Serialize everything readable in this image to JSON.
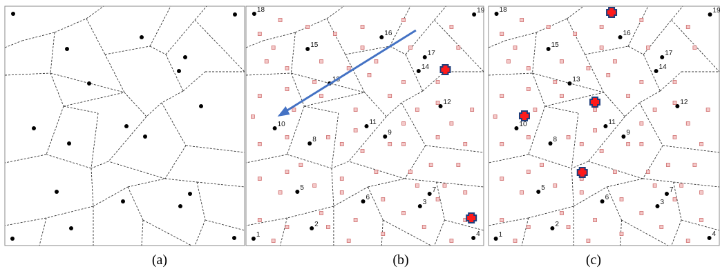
{
  "colors": {
    "site": "#000000",
    "edge": "#333333",
    "frame": "#8a8a8a",
    "sample_fill": "#f3c9c9",
    "sample_stroke": "#cf6b6b",
    "marker_fill": "#ff1a1a",
    "marker_outline": "#1f3d7a",
    "arrow": "#4472c4"
  },
  "panels": [
    {
      "id": "a",
      "caption": "(a)",
      "show_labels": false,
      "show_samples": false,
      "arrow": false,
      "markers": []
    },
    {
      "id": "b",
      "caption": "(b)",
      "show_labels": true,
      "show_samples": true,
      "arrow": true,
      "markers": [
        "m14",
        "m4"
      ]
    },
    {
      "id": "c",
      "caption": "(c)",
      "show_labels": true,
      "show_samples": true,
      "arrow": false,
      "markers": [
        "top",
        "m10",
        "center",
        "bottom"
      ]
    }
  ],
  "sites": [
    {
      "id": "1",
      "label": "1"
    },
    {
      "id": "2",
      "label": "2"
    },
    {
      "id": "3",
      "label": "3"
    },
    {
      "id": "4",
      "label": "4"
    },
    {
      "id": "5",
      "label": "5"
    },
    {
      "id": "6",
      "label": "6"
    },
    {
      "id": "7",
      "label": "7"
    },
    {
      "id": "8",
      "label": "8"
    },
    {
      "id": "9",
      "label": "9"
    },
    {
      "id": "10",
      "label": "10"
    },
    {
      "id": "11",
      "label": "11"
    },
    {
      "id": "12",
      "label": "12"
    },
    {
      "id": "13",
      "label": "13"
    },
    {
      "id": "14",
      "label": "14"
    },
    {
      "id": "15",
      "label": "15"
    },
    {
      "id": "16",
      "label": "16"
    },
    {
      "id": "17",
      "label": "17"
    },
    {
      "id": "18",
      "label": "18"
    },
    {
      "id": "19",
      "label": "19"
    }
  ]
}
